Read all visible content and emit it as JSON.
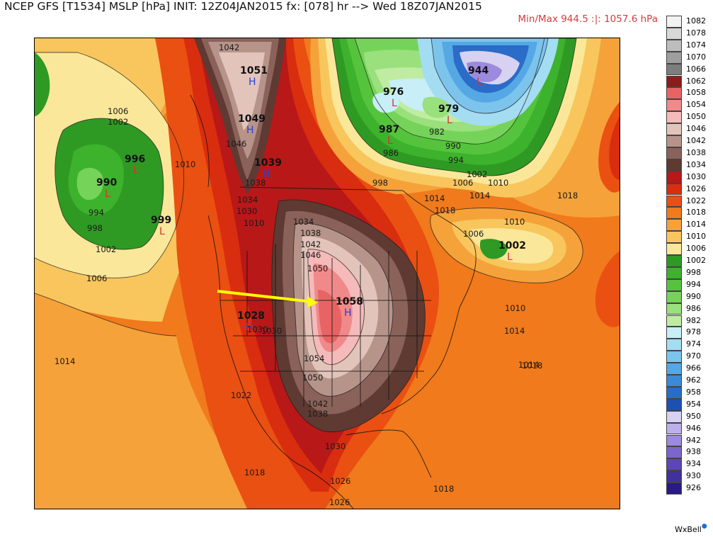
{
  "header": {
    "title": "NCEP GFS [T1534] MSLP [hPa] INIT: 12Z04JAN2015 fx: [078] hr --> Wed 18Z07JAN2015",
    "minmax": "Min/Max 944.5 :|: 1057.6 hPa"
  },
  "legend": [
    {
      "value": "1082",
      "color": "#f2f2f2"
    },
    {
      "value": "1078",
      "color": "#d8d8d8"
    },
    {
      "value": "1074",
      "color": "#bdbdbd"
    },
    {
      "value": "1070",
      "color": "#9e9e9e"
    },
    {
      "value": "1066",
      "color": "#7d7d7d"
    },
    {
      "value": "1062",
      "color": "#8c1c1c"
    },
    {
      "value": "1058",
      "color": "#e86464"
    },
    {
      "value": "1054",
      "color": "#f08a8a"
    },
    {
      "value": "1050",
      "color": "#f5baba"
    },
    {
      "value": "1046",
      "color": "#e3c4bb"
    },
    {
      "value": "1042",
      "color": "#b7948a"
    },
    {
      "value": "1038",
      "color": "#8a6259"
    },
    {
      "value": "1034",
      "color": "#5e3a33"
    },
    {
      "value": "1030",
      "color": "#b81818"
    },
    {
      "value": "1026",
      "color": "#d92d10"
    },
    {
      "value": "1022",
      "color": "#ea5012"
    },
    {
      "value": "1018",
      "color": "#f07a1c"
    },
    {
      "value": "1014",
      "color": "#f5a23a"
    },
    {
      "value": "1010",
      "color": "#f8c65c"
    },
    {
      "value": "1006",
      "color": "#fbe79a"
    },
    {
      "value": "1002",
      "color": "#2f9a23"
    },
    {
      "value": "998",
      "color": "#3db22c"
    },
    {
      "value": "994",
      "color": "#55c43c"
    },
    {
      "value": "990",
      "color": "#76d35a"
    },
    {
      "value": "986",
      "color": "#9ae07c"
    },
    {
      "value": "982",
      "color": "#c0eca2"
    },
    {
      "value": "978",
      "color": "#c8eef8"
    },
    {
      "value": "974",
      "color": "#a4dcf2"
    },
    {
      "value": "970",
      "color": "#7cc4ec"
    },
    {
      "value": "966",
      "color": "#56a8e4"
    },
    {
      "value": "962",
      "color": "#3a8ad8"
    },
    {
      "value": "958",
      "color": "#2a6cc8"
    },
    {
      "value": "954",
      "color": "#1e50b4"
    },
    {
      "value": "950",
      "color": "#d8d2f2"
    },
    {
      "value": "946",
      "color": "#bcb0ea"
    },
    {
      "value": "942",
      "color": "#9c8ade"
    },
    {
      "value": "938",
      "color": "#7c66cc"
    },
    {
      "value": "934",
      "color": "#5e46b6"
    },
    {
      "value": "930",
      "color": "#42309c"
    },
    {
      "value": "926",
      "color": "#2a1a86"
    }
  ],
  "centers": {
    "highs": [
      "1051",
      "1049",
      "1039",
      "1058",
      "1028"
    ],
    "lows": [
      "990",
      "996",
      "999",
      "976",
      "979",
      "944",
      "987",
      "1002"
    ]
  },
  "isobar_labels": [
    "1042",
    "1046",
    "1038",
    "1034",
    "1030",
    "1006",
    "1002",
    "1010",
    "994",
    "998",
    "1002",
    "1006",
    "1014",
    "1022",
    "1018",
    "1026",
    "1030",
    "1034",
    "1038",
    "1042",
    "1046",
    "1050",
    "1054",
    "1050",
    "1042",
    "1038",
    "1030",
    "1026",
    "1018",
    "1014",
    "1010",
    "1014",
    "1018",
    "1006",
    "1010",
    "1014",
    "1018",
    "1010",
    "1006",
    "998",
    "994",
    "990",
    "986",
    "982",
    "1002",
    "1014",
    "1018",
    "1010",
    "1030"
  ],
  "brand": "WxBell"
}
